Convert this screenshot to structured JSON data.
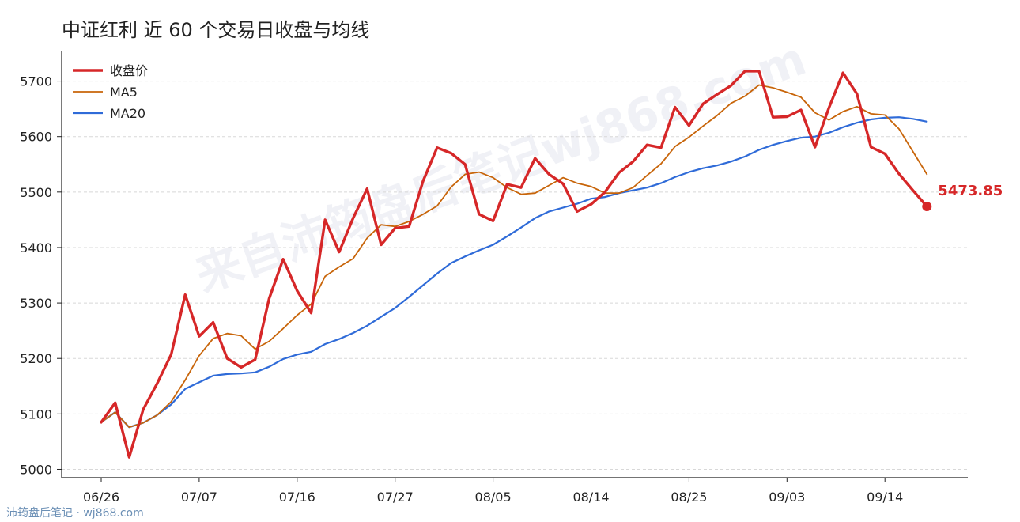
{
  "title": "中证红利 近 60 个交易日收盘与均线",
  "watermark": "来自沛筠盘后笔记wj868.com",
  "footer": "沛筠盘后笔记 · wj868.com",
  "chart_data": {
    "type": "line",
    "title": "中证红利 近 60 个交易日收盘与均线",
    "xlabel": "",
    "ylabel": "",
    "ylim": [
      4985,
      5755
    ],
    "yticks": [
      5000,
      5100,
      5200,
      5300,
      5400,
      5500,
      5600,
      5700
    ],
    "grid": "horizontal-dashed",
    "legend_position": "top-left",
    "x_tick_labels": [
      {
        "index": 0,
        "label": "06/26"
      },
      {
        "index": 7,
        "label": "07/07"
      },
      {
        "index": 14,
        "label": "07/16"
      },
      {
        "index": 21,
        "label": "07/27"
      },
      {
        "index": 28,
        "label": "08/05"
      },
      {
        "index": 35,
        "label": "08/14"
      },
      {
        "index": 42,
        "label": "08/25"
      },
      {
        "index": 49,
        "label": "09/03"
      },
      {
        "index": 56,
        "label": "09/14"
      }
    ],
    "series": [
      {
        "name": "收盘价",
        "color": "#d62728",
        "values": [
          5085,
          5120,
          5022,
          5108,
          5155,
          5207,
          5315,
          5240,
          5265,
          5200,
          5184,
          5198,
          5308,
          5379,
          5322,
          5282,
          5450,
          5392,
          5453,
          5506,
          5405,
          5435,
          5438,
          5520,
          5580,
          5570,
          5550,
          5460,
          5448,
          5514,
          5508,
          5561,
          5532,
          5515,
          5465,
          5478,
          5500,
          5535,
          5555,
          5585,
          5580,
          5653,
          5620,
          5659,
          5676,
          5692,
          5718,
          5718,
          5635,
          5636,
          5648,
          5581,
          5652,
          5715,
          5677,
          5581,
          5569,
          5533,
          5503,
          5474
        ]
      },
      {
        "name": "MA5",
        "color": "#c8650a",
        "values": [
          5085,
          5103,
          5076,
          5084,
          5098,
          5122,
          5161,
          5205,
          5236,
          5245,
          5241,
          5217,
          5231,
          5254,
          5278,
          5298,
          5348,
          5365,
          5380,
          5417,
          5441,
          5438,
          5447,
          5460,
          5475,
          5509,
          5532,
          5536,
          5526,
          5508,
          5496,
          5498,
          5512,
          5526,
          5516,
          5510,
          5498,
          5498,
          5508,
          5530,
          5551,
          5582,
          5599,
          5619,
          5638,
          5660,
          5673,
          5693,
          5688,
          5680,
          5671,
          5643,
          5630,
          5645,
          5654,
          5641,
          5639,
          5614,
          5573,
          5532
        ]
      },
      {
        "name": "MA20",
        "color": "#2f6bd8",
        "values": [
          5085,
          5103,
          5076,
          5084,
          5098,
          5117,
          5145,
          5157,
          5169,
          5172,
          5173,
          5175,
          5185,
          5199,
          5207,
          5212,
          5226,
          5235,
          5246,
          5259,
          5275,
          5291,
          5311,
          5332,
          5353,
          5372,
          5384,
          5395,
          5405,
          5420,
          5436,
          5453,
          5465,
          5472,
          5479,
          5488,
          5491,
          5498,
          5503,
          5508,
          5516,
          5527,
          5536,
          5543,
          5548,
          5555,
          5564,
          5576,
          5585,
          5592,
          5598,
          5600,
          5607,
          5617,
          5625,
          5631,
          5634,
          5635,
          5632,
          5627
        ]
      }
    ],
    "last_value_label": "5473.85"
  }
}
